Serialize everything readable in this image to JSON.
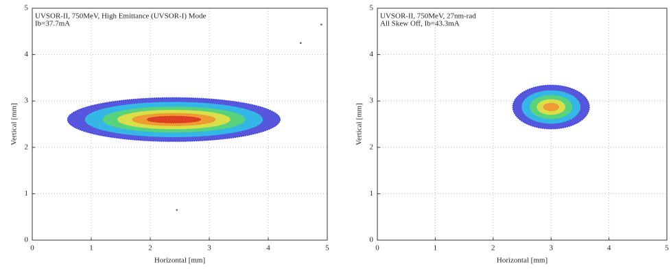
{
  "chart_data": [
    {
      "type": "contour",
      "annotation": [
        "UVSOR-II, 750MeV, High Emittance (UVSOR-I) Mode",
        "Ib=37.7mA"
      ],
      "xlabel": "Horizontal [mm]",
      "ylabel": "Vertical [mm]",
      "xlim": [
        0,
        5
      ],
      "ylim": [
        0,
        5
      ],
      "xticks": [
        0,
        1,
        2,
        3,
        4,
        5
      ],
      "yticks": [
        0,
        1,
        2,
        3,
        4,
        5
      ],
      "grid": true,
      "levels": [
        {
          "color": "#3a3ad8",
          "cx": 2.4,
          "cy": 2.6,
          "rx": 1.8,
          "ry": 0.47
        },
        {
          "color": "#2ec8e8",
          "cx": 2.4,
          "cy": 2.6,
          "rx": 1.5,
          "ry": 0.37
        },
        {
          "color": "#5fd86a",
          "cx": 2.4,
          "cy": 2.6,
          "rx": 1.2,
          "ry": 0.27
        },
        {
          "color": "#f0e040",
          "cx": 2.4,
          "cy": 2.6,
          "rx": 0.95,
          "ry": 0.2
        },
        {
          "color": "#f09030",
          "cx": 2.4,
          "cy": 2.6,
          "rx": 0.7,
          "ry": 0.13
        },
        {
          "color": "#d83020",
          "cx": 2.4,
          "cy": 2.6,
          "rx": 0.45,
          "ry": 0.07
        }
      ],
      "points": {
        "x": [
          4.9,
          4.55,
          2.45
        ],
        "y": [
          4.65,
          4.25,
          0.65
        ]
      }
    },
    {
      "type": "contour",
      "annotation": [
        "UVSOR-II, 750MeV, 27nm-rad",
        "All Skew Off, Ib=43.3mA"
      ],
      "xlabel": "Horizontal [mm]",
      "ylabel": "Vertical [mm]",
      "xlim": [
        0,
        5
      ],
      "ylim": [
        0,
        5
      ],
      "xticks": [
        0,
        1,
        2,
        3,
        4,
        5
      ],
      "yticks": [
        0,
        1,
        2,
        3,
        4,
        5
      ],
      "grid": true,
      "levels": [
        {
          "color": "#3a3ad8",
          "cx": 3.0,
          "cy": 2.87,
          "rx": 0.66,
          "ry": 0.47
        },
        {
          "color": "#2ec8e8",
          "cx": 3.0,
          "cy": 2.87,
          "rx": 0.5,
          "ry": 0.35
        },
        {
          "color": "#5fd86a",
          "cx": 3.0,
          "cy": 2.87,
          "rx": 0.36,
          "ry": 0.25
        },
        {
          "color": "#f0e040",
          "cx": 3.0,
          "cy": 2.87,
          "rx": 0.24,
          "ry": 0.16
        },
        {
          "color": "#f09030",
          "cx": 3.0,
          "cy": 2.87,
          "rx": 0.13,
          "ry": 0.08
        }
      ],
      "points": {
        "x": [],
        "y": []
      }
    }
  ]
}
